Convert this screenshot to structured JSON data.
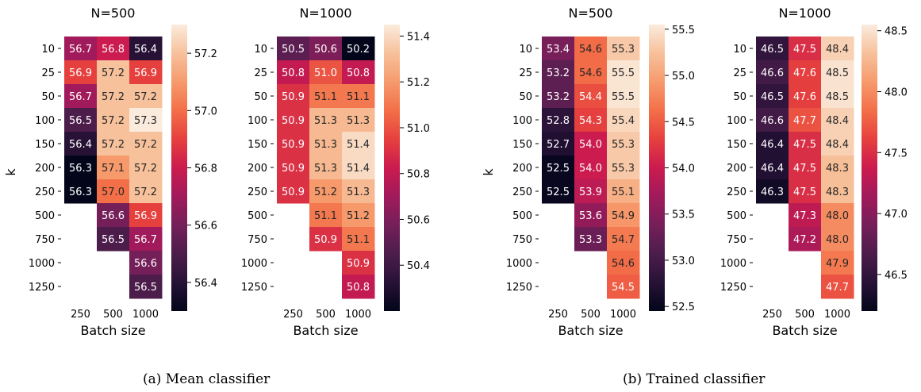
{
  "captions": {
    "a": "(a) Mean classifier",
    "b": "(b) Trained classifier"
  },
  "chart_data": [
    {
      "type": "heatmap",
      "title": "N=500",
      "xlabel": "Batch size",
      "ylabel": "k",
      "x": [
        "250",
        "500",
        "1000"
      ],
      "y": [
        "10",
        "25",
        "50",
        "100",
        "150",
        "200",
        "250",
        "500",
        "750",
        "1000",
        "1250"
      ],
      "values": [
        [
          56.7,
          56.8,
          56.4
        ],
        [
          56.9,
          57.2,
          56.9
        ],
        [
          56.7,
          57.2,
          57.2
        ],
        [
          56.5,
          57.2,
          57.3
        ],
        [
          56.4,
          57.2,
          57.2
        ],
        [
          56.3,
          57.1,
          57.2
        ],
        [
          56.3,
          57.0,
          57.2
        ],
        [
          null,
          56.6,
          56.9
        ],
        [
          null,
          56.5,
          56.7
        ],
        [
          null,
          null,
          56.6
        ],
        [
          null,
          null,
          56.5
        ]
      ],
      "colorbar": {
        "range": [
          56.3,
          57.3
        ],
        "ticks": [
          "57.2",
          "57.0",
          "56.8",
          "56.6",
          "56.4"
        ]
      }
    },
    {
      "type": "heatmap",
      "title": "N=1000",
      "xlabel": "Batch size",
      "ylabel": "",
      "x": [
        "250",
        "500",
        "1000"
      ],
      "y": [
        "10",
        "25",
        "50",
        "100",
        "150",
        "200",
        "250",
        "500",
        "750",
        "1000",
        "1250"
      ],
      "values": [
        [
          50.5,
          50.6,
          50.2
        ],
        [
          50.8,
          51.0,
          50.8
        ],
        [
          50.9,
          51.1,
          51.1
        ],
        [
          50.9,
          51.3,
          51.3
        ],
        [
          50.9,
          51.3,
          51.4
        ],
        [
          50.9,
          51.3,
          51.4
        ],
        [
          50.9,
          51.2,
          51.3
        ],
        [
          null,
          51.1,
          51.2
        ],
        [
          null,
          50.9,
          51.1
        ],
        [
          null,
          null,
          50.9
        ],
        [
          null,
          null,
          50.8
        ]
      ],
      "colorbar": {
        "range": [
          50.2,
          51.45
        ],
        "ticks": [
          "51.4",
          "51.2",
          "51.0",
          "50.8",
          "50.6",
          "50.4"
        ]
      }
    },
    {
      "type": "heatmap",
      "title": "N=500",
      "xlabel": "Batch size",
      "ylabel": "k",
      "x": [
        "250",
        "500",
        "1000"
      ],
      "y": [
        "10",
        "25",
        "50",
        "100",
        "150",
        "200",
        "250",
        "500",
        "750",
        "1000",
        "1250"
      ],
      "values": [
        [
          53.4,
          54.6,
          55.3
        ],
        [
          53.2,
          54.6,
          55.5
        ],
        [
          53.2,
          54.4,
          55.5
        ],
        [
          52.8,
          54.3,
          55.4
        ],
        [
          52.7,
          54.0,
          55.3
        ],
        [
          52.5,
          54.0,
          55.3
        ],
        [
          52.5,
          53.9,
          55.1
        ],
        [
          null,
          53.6,
          54.9
        ],
        [
          null,
          53.3,
          54.7
        ],
        [
          null,
          null,
          54.6
        ],
        [
          null,
          null,
          54.5
        ]
      ],
      "colorbar": {
        "range": [
          52.45,
          55.55
        ],
        "ticks": [
          "55.5",
          "55.0",
          "54.5",
          "54.0",
          "53.5",
          "53.0",
          "52.5"
        ]
      }
    },
    {
      "type": "heatmap",
      "title": "N=1000",
      "xlabel": "Batch size",
      "ylabel": "",
      "x": [
        "250",
        "500",
        "1000"
      ],
      "y": [
        "10",
        "25",
        "50",
        "100",
        "150",
        "200",
        "250",
        "500",
        "750",
        "1000",
        "1250"
      ],
      "values": [
        [
          46.5,
          47.5,
          48.4
        ],
        [
          46.6,
          47.6,
          48.5
        ],
        [
          46.5,
          47.6,
          48.5
        ],
        [
          46.6,
          47.7,
          48.4
        ],
        [
          46.4,
          47.5,
          48.4
        ],
        [
          46.4,
          47.5,
          48.3
        ],
        [
          46.3,
          47.5,
          48.3
        ],
        [
          null,
          47.3,
          48.0
        ],
        [
          null,
          47.2,
          48.0
        ],
        [
          null,
          null,
          47.9
        ],
        [
          null,
          null,
          47.7
        ]
      ],
      "colorbar": {
        "range": [
          46.2,
          48.55
        ],
        "ticks": [
          "48.5",
          "48.0",
          "47.5",
          "47.0",
          "46.5"
        ]
      }
    }
  ]
}
